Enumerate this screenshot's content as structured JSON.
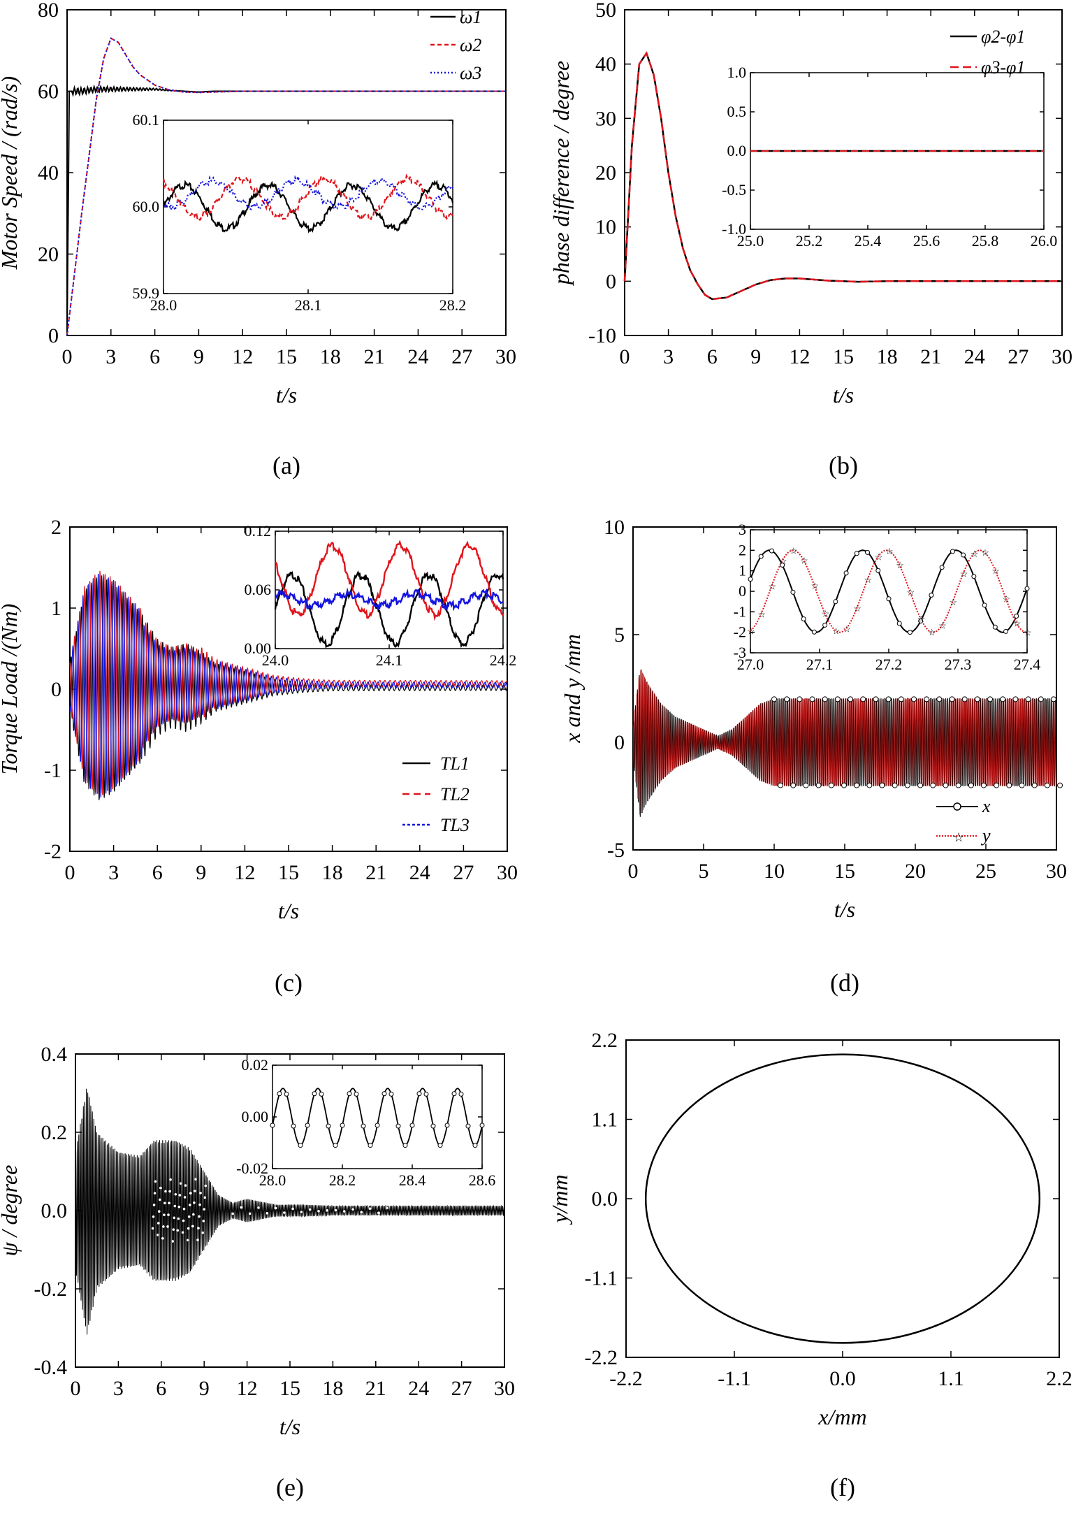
{
  "chart_data": [
    {
      "id": "a",
      "caption": "(a)",
      "type": "line",
      "xlabel": "t/s",
      "ylabel": "Motor Speed / (rad/s)",
      "xlim": [
        0,
        30
      ],
      "ylim": [
        0,
        80
      ],
      "xticks": [
        "0",
        "3",
        "6",
        "9",
        "12",
        "15",
        "18",
        "21",
        "24",
        "27",
        "30"
      ],
      "yticks": [
        "0",
        "20",
        "40",
        "60",
        "80"
      ],
      "series": [
        {
          "name": "ω1",
          "color": "#000000",
          "dash": "solid",
          "x": [
            0,
            0.15,
            0.3,
            1,
            2,
            3,
            4,
            5,
            6,
            7,
            8,
            9,
            10,
            12,
            30
          ],
          "y": [
            0,
            60,
            60,
            60,
            60.5,
            60.5,
            60.5,
            60.5,
            60.5,
            60.2,
            60,
            59.8,
            60,
            60,
            60
          ]
        },
        {
          "name": "ω2",
          "color": "#e0141b",
          "dash": "6,4",
          "x": [
            0,
            0.5,
            1,
            1.5,
            2,
            2.5,
            3,
            3.5,
            4,
            4.5,
            5,
            6,
            7,
            8,
            9,
            10,
            11,
            12,
            14,
            30
          ],
          "y": [
            0,
            15,
            30,
            44,
            58,
            68,
            73,
            72,
            69,
            66,
            64,
            61.5,
            60.3,
            59.8,
            59.7,
            59.8,
            59.9,
            60,
            60,
            60
          ]
        },
        {
          "name": "ω3",
          "color": "#1414e0",
          "dash": "2,3",
          "x": [
            0,
            0.5,
            1,
            1.5,
            2,
            2.5,
            3,
            3.5,
            4,
            4.5,
            5,
            6,
            7,
            8,
            9,
            10,
            11,
            12,
            14,
            30
          ],
          "y": [
            0,
            15,
            30,
            44,
            58,
            68,
            73,
            72,
            69,
            66,
            64,
            61.5,
            60.3,
            59.8,
            59.7,
            59.8,
            59.9,
            60,
            60,
            60
          ]
        }
      ],
      "inset": {
        "xlim": [
          28.0,
          28.2
        ],
        "ylim": [
          59.9,
          60.1
        ],
        "xticks": [
          "28.0",
          "28.1",
          "28.2"
        ],
        "yticks": [
          "59.9",
          "60.0",
          "60.1"
        ],
        "series": [
          {
            "name": "ω1",
            "amp": 0.025,
            "mean": 60.0,
            "period": 0.058,
            "phase": 0.0
          },
          {
            "name": "ω2",
            "amp": 0.022,
            "mean": 60.01,
            "period": 0.058,
            "phase": 2.1
          },
          {
            "name": "ω3",
            "amp": 0.015,
            "mean": 60.015,
            "period": 0.058,
            "phase": 4.2
          }
        ]
      }
    },
    {
      "id": "b",
      "caption": "(b)",
      "type": "line",
      "xlabel": "t/s",
      "ylabel": "phase difference / degree",
      "xlim": [
        0,
        30
      ],
      "ylim": [
        -10,
        50
      ],
      "xticks": [
        "0",
        "3",
        "6",
        "9",
        "12",
        "15",
        "18",
        "21",
        "24",
        "27",
        "30"
      ],
      "yticks": [
        "-10",
        "0",
        "10",
        "20",
        "30",
        "40",
        "50"
      ],
      "series": [
        {
          "name": "φ2-φ1",
          "color": "#000000",
          "dash": "solid",
          "x": [
            0,
            0.5,
            1,
            1.5,
            2,
            2.5,
            3,
            3.5,
            4,
            4.5,
            5,
            5.5,
            6,
            7,
            8,
            9,
            10,
            11,
            12,
            13,
            14,
            16,
            18,
            20,
            30
          ],
          "y": [
            0,
            25,
            40,
            42,
            38,
            30,
            20,
            12,
            6,
            2,
            -0.5,
            -2.5,
            -3.3,
            -3,
            -1.8,
            -0.6,
            0.2,
            0.5,
            0.5,
            0.3,
            0.1,
            -0.1,
            0,
            0,
            0
          ]
        },
        {
          "name": "φ3-φ1",
          "color": "#e0141b",
          "dash": "12,6",
          "x": [
            0,
            0.5,
            1,
            1.5,
            2,
            2.5,
            3,
            3.5,
            4,
            4.5,
            5,
            5.5,
            6,
            7,
            8,
            9,
            10,
            11,
            12,
            13,
            14,
            16,
            18,
            20,
            30
          ],
          "y": [
            0,
            25,
            40,
            42,
            38,
            30,
            20,
            12,
            6,
            2,
            -0.5,
            -2.5,
            -3.3,
            -3,
            -1.8,
            -0.6,
            0.2,
            0.5,
            0.5,
            0.3,
            0.1,
            -0.1,
            0,
            0,
            0
          ]
        }
      ],
      "inset": {
        "xlim": [
          25.0,
          26.0
        ],
        "ylim": [
          -1.0,
          1.0
        ],
        "xticks": [
          "25.0",
          "25.2",
          "25.4",
          "25.6",
          "25.8",
          "26.0"
        ],
        "yticks": [
          "-1.0",
          "-0.5",
          "0.0",
          "0.5",
          "1.0"
        ],
        "value": 0.0
      }
    },
    {
      "id": "c",
      "caption": "(c)",
      "type": "line",
      "xlabel": "t/s",
      "ylabel": "Torque Load /(Nm)",
      "xlim": [
        0,
        30
      ],
      "ylim": [
        -2,
        2
      ],
      "xticks": [
        "0",
        "3",
        "6",
        "9",
        "12",
        "15",
        "18",
        "21",
        "24",
        "27",
        "30"
      ],
      "yticks": [
        "-2",
        "-1",
        "0",
        "1",
        "2"
      ],
      "series": [
        {
          "name": "TL1",
          "color": "#000000",
          "dash": "solid"
        },
        {
          "name": "TL2",
          "color": "#e0141b",
          "dash": "10,6"
        },
        {
          "name": "TL3",
          "color": "#1414e0",
          "dash": "4,3"
        }
      ],
      "inset": {
        "xlim": [
          24.0,
          24.2
        ],
        "ylim": [
          0.0,
          0.12
        ],
        "xticks": [
          "24.0",
          "24.1",
          "24.2"
        ],
        "yticks": [
          "0.00",
          "0.06",
          "0.12"
        ],
        "series": [
          {
            "name": "TL1",
            "amp": 0.035,
            "mean": 0.04,
            "period": 0.06,
            "phase": 0.0
          },
          {
            "name": "TL2",
            "amp": 0.035,
            "mean": 0.07,
            "period": 0.06,
            "phase": 2.6
          },
          {
            "name": "TL3",
            "amp": 0.006,
            "mean": 0.05,
            "period": 0.06,
            "phase": 1.2
          }
        ]
      }
    },
    {
      "id": "d",
      "caption": "(d)",
      "type": "line",
      "xlabel": "t/s",
      "ylabel": "x and y /mm",
      "xlim": [
        0,
        30
      ],
      "ylim": [
        -5,
        10
      ],
      "xticks": [
        "0",
        "5",
        "10",
        "15",
        "20",
        "25",
        "30"
      ],
      "yticks": [
        "-5",
        "0",
        "5",
        "10"
      ],
      "series": [
        {
          "name": "x",
          "color": "#000000",
          "dash": "solid"
        },
        {
          "name": "y",
          "color": "#e0141b",
          "dash": "2,2"
        }
      ],
      "inset": {
        "xlim": [
          27.0,
          27.4
        ],
        "ylim": [
          -3,
          3
        ],
        "xticks": [
          "27.0",
          "27.1",
          "27.2",
          "27.3",
          "27.4"
        ],
        "yticks": [
          "-3",
          "-2",
          "-1",
          "0",
          "1",
          "2",
          "3"
        ],
        "amplitude": 2.0,
        "period": 0.135
      }
    },
    {
      "id": "e",
      "caption": "(e)",
      "type": "line",
      "xlabel": "t/s",
      "ylabel": "ψ / degree",
      "xlim": [
        0,
        30
      ],
      "ylim": [
        -0.4,
        0.4
      ],
      "xticks": [
        "0",
        "3",
        "6",
        "9",
        "12",
        "15",
        "18",
        "21",
        "24",
        "27",
        "30"
      ],
      "yticks": [
        "-0.4",
        "-0.2",
        "0.0",
        "0.2",
        "0.4"
      ],
      "inset": {
        "xlim": [
          28.0,
          28.6
        ],
        "ylim": [
          -0.02,
          0.02
        ],
        "xticks": [
          "28.0",
          "28.2",
          "28.4",
          "28.6"
        ],
        "yticks": [
          "-0.02",
          "0.00",
          "0.02"
        ],
        "amplitude": 0.011,
        "period": 0.1
      }
    },
    {
      "id": "f",
      "caption": "(f)",
      "type": "line",
      "xlabel": "x/mm",
      "ylabel": "y/mm",
      "xlim": [
        -2.2,
        2.2
      ],
      "ylim": [
        -2.2,
        2.2
      ],
      "xticks": [
        "-2.2",
        "-1.1",
        "0.0",
        "1.1",
        "2.2"
      ],
      "yticks": [
        "-2.2",
        "-1.1",
        "0.0",
        "1.1",
        "2.2"
      ],
      "ellipse": {
        "cx": 0.0,
        "cy": 0.0,
        "rx": 2.0,
        "ry": 2.0
      }
    }
  ]
}
